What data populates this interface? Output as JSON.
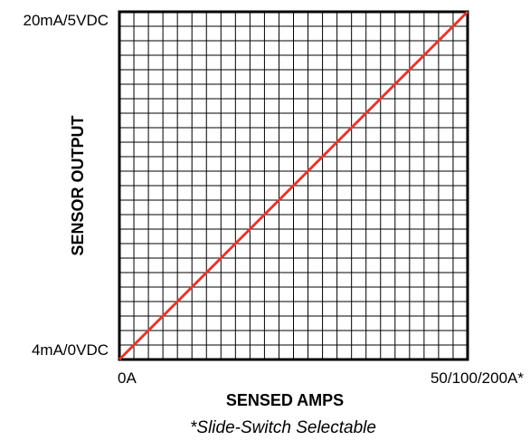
{
  "chart_data": {
    "type": "line",
    "title": "",
    "xlabel": "SENSED AMPS",
    "ylabel": "SENSOR OUTPUT",
    "x_tick_labels": {
      "min": "0A",
      "max": "50/100/200A*"
    },
    "y_tick_labels": {
      "min": "4mA/0VDC",
      "max": "20mA/5VDC"
    },
    "xlim": [
      0,
      1
    ],
    "ylim": [
      0,
      1
    ],
    "grid": true,
    "grid_divisions": 24,
    "series": [
      {
        "x": [
          0,
          1
        ],
        "y": [
          0,
          1
        ]
      }
    ],
    "footnote": "*Slide-Switch Selectable"
  },
  "colors": {
    "line": "#e03a2e",
    "grid": "#000000",
    "frame": "#000000",
    "background": "#ffffff"
  }
}
